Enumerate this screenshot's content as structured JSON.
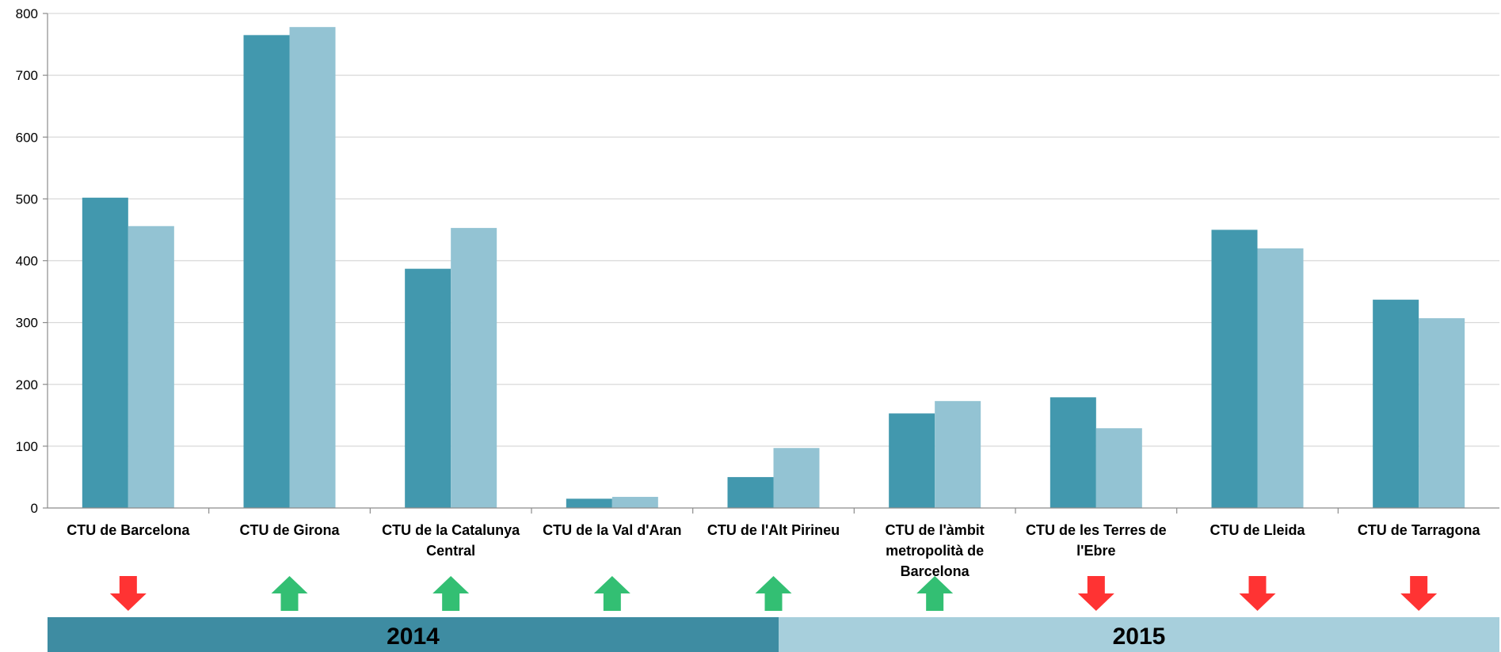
{
  "chart_data": {
    "type": "bar",
    "categories": [
      [
        "CTU de Barcelona"
      ],
      [
        "CTU de Girona"
      ],
      [
        "CTU de la Catalunya",
        "Central"
      ],
      [
        "CTU de la Val d'Aran"
      ],
      [
        "CTU de l'Alt Pirineu"
      ],
      [
        "CTU de l'àmbit",
        "metropolità de",
        "Barcelona"
      ],
      [
        "CTU de les Terres de",
        "l'Ebre"
      ],
      [
        "CTU de Lleida"
      ],
      [
        "CTU de Tarragona"
      ]
    ],
    "series": [
      {
        "name": "2014",
        "color": "#4298ae",
        "values": [
          502,
          765,
          387,
          15,
          50,
          153,
          179,
          450,
          337
        ]
      },
      {
        "name": "2015",
        "color": "#93c3d3",
        "values": [
          456,
          778,
          453,
          18,
          97,
          173,
          129,
          420,
          307
        ]
      }
    ],
    "trend_arrows": [
      "down",
      "up",
      "up",
      "up",
      "up",
      "up",
      "down",
      "down",
      "down"
    ],
    "arrow_colors": {
      "up": "#33bf73",
      "down": "#ff3333"
    },
    "legend_colors": {
      "2014": "#3e8ca2",
      "2015": "#a7cfdc"
    },
    "ylim": [
      0,
      800
    ],
    "yticks": [
      0,
      100,
      200,
      300,
      400,
      500,
      600,
      700,
      800
    ],
    "grid": true,
    "legend_position": "bottom"
  }
}
